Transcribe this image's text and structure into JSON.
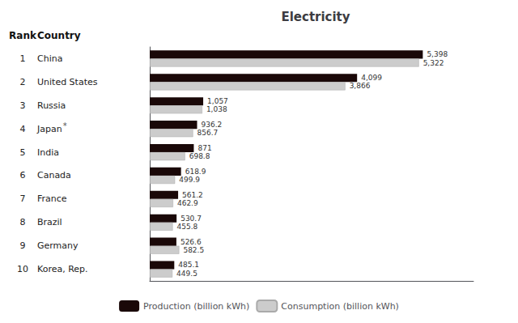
{
  "chart_data": {
    "type": "bar",
    "orientation": "horizontal",
    "title": "Electricity",
    "categories": [
      "China",
      "United States",
      "Russia",
      "Japan",
      "India",
      "Canada",
      "France",
      "Brazil",
      "Germany",
      "Korea, Rep."
    ],
    "ranks": [
      "1",
      "2",
      "3",
      "4",
      "5",
      "6",
      "7",
      "8",
      "9",
      "10"
    ],
    "rank_header": "Rank",
    "category_header": "Country",
    "annotations": [
      {
        "text": "*",
        "category": "Japan"
      }
    ],
    "series": [
      {
        "name": "Production (billion kWh)",
        "color": "#1a0808",
        "values": [
          5398,
          4099,
          1057,
          936.2,
          871,
          618.9,
          561.2,
          530.7,
          526.6,
          485.1
        ],
        "value_labels": [
          "5,398",
          "4,099",
          "1,057",
          "936.2",
          "871",
          "618.9",
          "561.2",
          "530.7",
          "526.6",
          "485.1"
        ]
      },
      {
        "name": "Consumption (billion kWh)",
        "color": "#cccccc",
        "values": [
          5322,
          3866,
          1038,
          856.7,
          698.8,
          499.9,
          462.9,
          455.8,
          582.5,
          449.5
        ],
        "value_labels": [
          "5,322",
          "3,866",
          "1,038",
          "856.7",
          "698.8",
          "499.9",
          "462.9",
          "455.8",
          "582.5",
          "449.5"
        ]
      }
    ],
    "xlim": [
      0,
      6400
    ],
    "data_labels": true,
    "tick_labels": "y",
    "grid": false,
    "legend": "bottom"
  }
}
